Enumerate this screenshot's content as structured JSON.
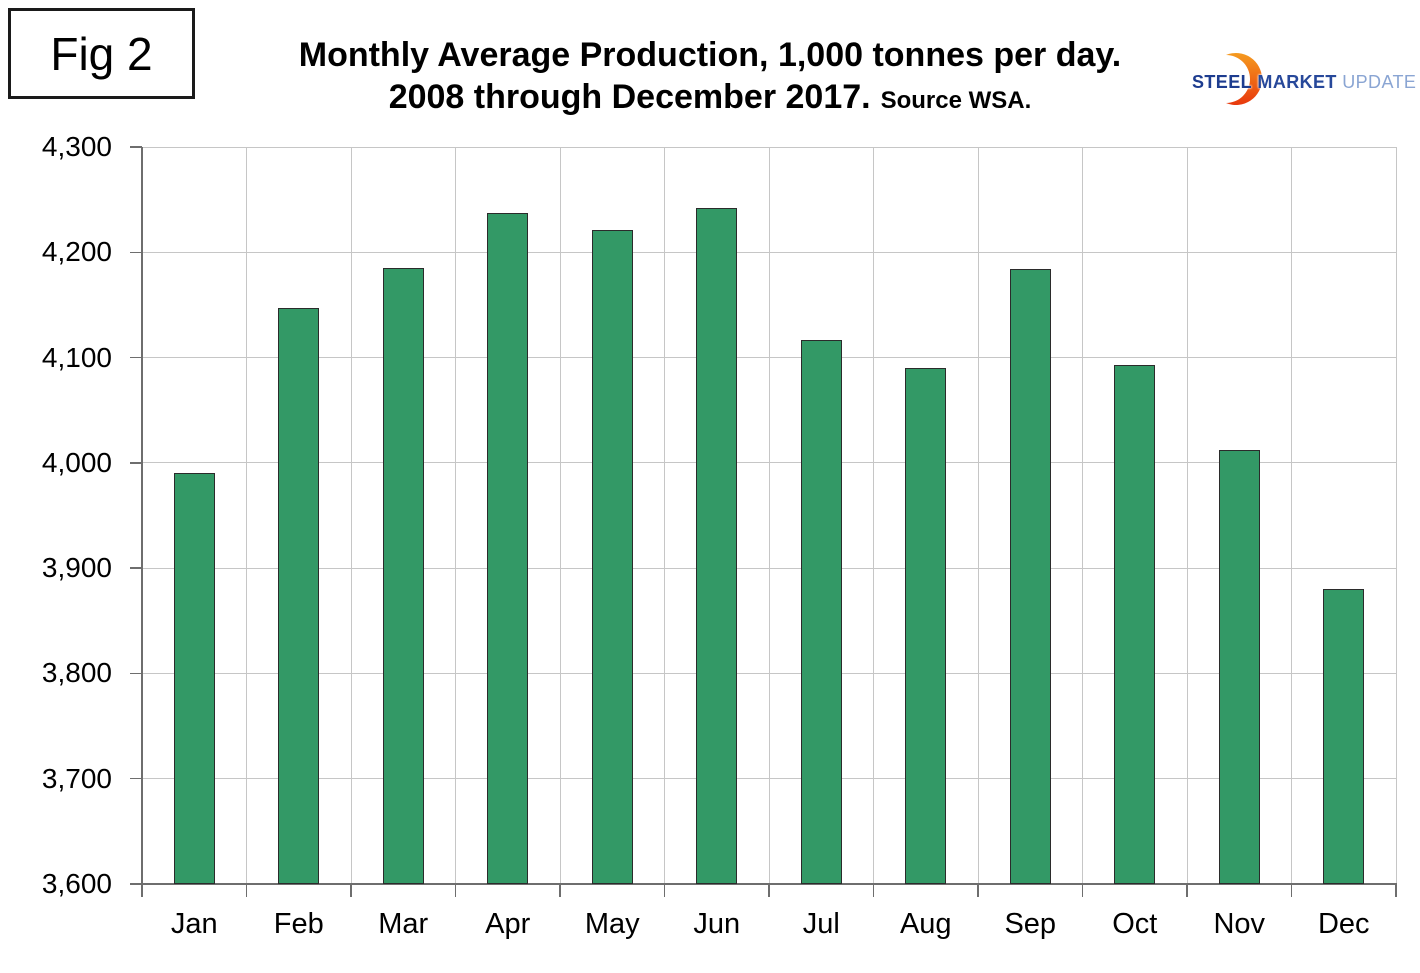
{
  "figure_label": "Fig 2",
  "title": {
    "line1": "Monthly Average Production, 1,000 tonnes per day.",
    "line2": "2008 through December 2017.",
    "source": "Source WSA."
  },
  "logo": {
    "steel": "STEEL",
    "market": "MARKET",
    "update": "UPDATE",
    "swoosh_color_top": "#F59B20",
    "swoosh_color_bottom": "#E8380D",
    "text_color_dark": "#1d3c8f",
    "text_color_light": "#8aa5d3"
  },
  "chart_data": {
    "type": "bar",
    "title": "Monthly Average Production, 1,000 tonnes per day. 2008 through December 2017. Source WSA.",
    "categories": [
      "Jan",
      "Feb",
      "Mar",
      "Apr",
      "May",
      "Jun",
      "Jul",
      "Aug",
      "Sep",
      "Oct",
      "Nov",
      "Dec"
    ],
    "values": [
      3990,
      4147,
      4185,
      4237,
      4221,
      4242,
      4117,
      4090,
      4184,
      4093,
      4012,
      3880
    ],
    "xlabel": "",
    "ylabel": "",
    "ylim": [
      3600,
      4300
    ],
    "ytick_step": 100,
    "ytick_labels": [
      "3,600",
      "3,700",
      "3,800",
      "3,900",
      "4,000",
      "4,100",
      "4,200",
      "4,300"
    ],
    "grid": true,
    "legend": "none",
    "bar_color": "#339966",
    "bar_border_color": "#2b2b2b",
    "gridline_color": "#c6c6c6",
    "axis_color": "#6e6e6e"
  }
}
